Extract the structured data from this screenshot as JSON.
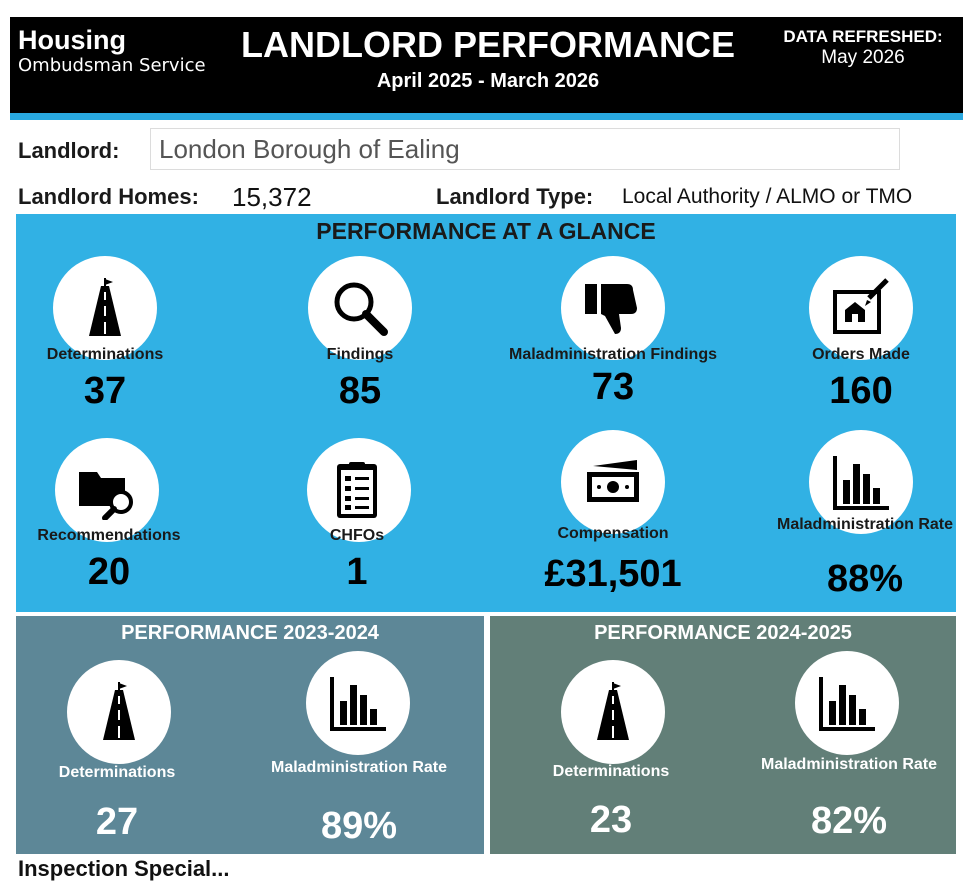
{
  "header": {
    "brand_main": "Housing",
    "brand_sub": "Ombudsman Service",
    "title": "LANDLORD PERFORMANCE",
    "period": "April 2025 - March 2026",
    "refresh_label": "DATA REFRESHED:",
    "refresh_value": "May 2026"
  },
  "landlord": {
    "label": "Landlord:",
    "value": "London Borough of Ealing",
    "homes_label": "Landlord Homes:",
    "homes_value": "15,372",
    "type_label": "Landlord Type:",
    "type_value": "Local Authority / ALMO or TMO"
  },
  "glance": {
    "title": "PERFORMANCE AT A GLANCE",
    "stats": [
      {
        "label": "Determinations",
        "value": "37",
        "icon": "road-icon"
      },
      {
        "label": "Findings",
        "value": "85",
        "icon": "magnifier-icon"
      },
      {
        "label": "Maladministration Findings",
        "value": "73",
        "icon": "thumbs-down-icon"
      },
      {
        "label": "Orders Made",
        "value": "160",
        "icon": "house-plan-icon"
      },
      {
        "label": "Recommendations",
        "value": "20",
        "icon": "folder-search-icon"
      },
      {
        "label": "CHFOs",
        "value": "1",
        "icon": "checklist-icon"
      },
      {
        "label": "Compensation",
        "value": "£31,501",
        "icon": "money-icon"
      },
      {
        "label": "Maladministration Rate",
        "value": "88%",
        "icon": "bar-chart-icon"
      }
    ]
  },
  "p2324": {
    "title": "PERFORMANCE 2023-2024",
    "determinations_label": "Determinations",
    "determinations_value": "27",
    "rate_label": "Maladministration Rate",
    "rate_value": "89%"
  },
  "p2425": {
    "title": "PERFORMANCE 2024-2025",
    "determinations_label": "Determinations",
    "determinations_value": "23",
    "rate_label": "Maladministration Rate",
    "rate_value": "82%"
  },
  "footer_fragment": "Inspection Special..."
}
